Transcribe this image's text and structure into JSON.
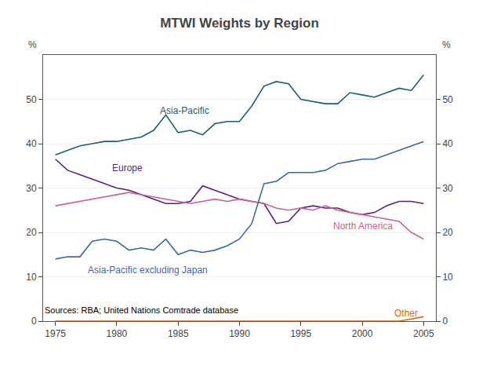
{
  "chart_data": {
    "type": "line",
    "title": "MTWI Weights by Region",
    "ylabel": "%",
    "y2label": "%",
    "x": [
      1975,
      1976,
      1977,
      1978,
      1979,
      1980,
      1981,
      1982,
      1983,
      1984,
      1985,
      1986,
      1987,
      1988,
      1989,
      1990,
      1991,
      1992,
      1993,
      1994,
      1995,
      1996,
      1997,
      1998,
      1999,
      2000,
      2001,
      2002,
      2003,
      2004,
      2005
    ],
    "series": [
      {
        "name": "Asia-Pacific",
        "color": "#1b5e72",
        "values": [
          37.5,
          38.5,
          39.5,
          40.0,
          40.5,
          40.5,
          41.0,
          41.5,
          43.0,
          46.5,
          42.5,
          43.0,
          42.0,
          44.5,
          45.0,
          45.0,
          48.5,
          53.0,
          54.0,
          53.5,
          50.0,
          49.5,
          49.0,
          49.0,
          51.5,
          51.0,
          50.5,
          51.5,
          52.5,
          52.0,
          55.5
        ]
      },
      {
        "name": "Europe",
        "color": "#5b1f82",
        "values": [
          36.5,
          34.0,
          33.0,
          32.0,
          31.0,
          30.0,
          29.5,
          28.5,
          27.5,
          26.5,
          26.5,
          27.0,
          30.5,
          29.5,
          28.5,
          27.5,
          27.0,
          26.5,
          22.0,
          22.5,
          25.5,
          26.0,
          25.5,
          25.5,
          24.5,
          24.0,
          24.5,
          26.0,
          27.0,
          27.0,
          26.5
        ]
      },
      {
        "name": "North America",
        "color": "#d4608a",
        "values": [
          26.0,
          26.5,
          27.0,
          27.5,
          28.0,
          28.5,
          29.0,
          28.5,
          28.0,
          27.5,
          27.0,
          26.5,
          27.0,
          27.5,
          27.0,
          27.5,
          27.0,
          26.5,
          25.5,
          25.0,
          25.5,
          25.0,
          26.0,
          25.0,
          24.5,
          24.0,
          23.5,
          23.0,
          22.5,
          20.0,
          18.5
        ]
      },
      {
        "name": "Asia-Pacific excluding Japan",
        "color": "#3a68b0",
        "values": [
          14.0,
          14.5,
          14.5,
          18.0,
          18.5,
          18.0,
          16.0,
          16.5,
          16.0,
          18.5,
          15.0,
          16.0,
          15.5,
          16.0,
          17.0,
          18.5,
          22.0,
          31.0,
          31.5,
          33.5,
          33.5,
          33.5,
          34.0,
          35.5,
          36.0,
          36.5,
          36.5,
          37.5,
          38.5,
          39.5,
          40.5
        ]
      },
      {
        "name": "Other",
        "color": "#d4681a",
        "values": [
          0.0,
          0.0,
          0.0,
          0.0,
          0.0,
          0.0,
          0.0,
          0.0,
          0.0,
          0.0,
          0.0,
          0.0,
          0.0,
          0.0,
          0.0,
          0.0,
          0.0,
          0.0,
          0.0,
          0.0,
          0.0,
          0.0,
          0.0,
          0.0,
          0.0,
          0.0,
          0.0,
          0.0,
          0.0,
          0.5,
          1.0
        ]
      }
    ],
    "annotations": [
      {
        "text": "Asia-Pacific",
        "x": 1985.5,
        "y": 47.5,
        "color": "#1b5e72",
        "align": "center"
      },
      {
        "text": "Europe",
        "x": 1979.5,
        "y": 34.5,
        "color": "#5b1f82",
        "align": "left"
      },
      {
        "text": "North America",
        "x": 1997.5,
        "y": 21.5,
        "color": "#d4608a",
        "align": "left"
      },
      {
        "text": "Asia-Pacific excluding Japan",
        "x": 1977.5,
        "y": 11.5,
        "color": "#3a68b0",
        "align": "left"
      },
      {
        "text": "Other",
        "x": 2002.5,
        "y": 1.8,
        "color": "#d4681a",
        "align": "left"
      },
      {
        "text": "Sources: RBA; United Nations Comtrade database"
      }
    ],
    "xlim": [
      1974,
      2006
    ],
    "xticks": [
      1975,
      1980,
      1985,
      1990,
      1995,
      2000,
      2005
    ],
    "ylim": [
      0,
      60
    ],
    "yticks": [
      0,
      10,
      20,
      30,
      40,
      50
    ],
    "y2lim": [
      0,
      60
    ],
    "y2ticks": [
      0,
      10,
      20,
      30,
      40,
      50
    ],
    "grid": true
  }
}
